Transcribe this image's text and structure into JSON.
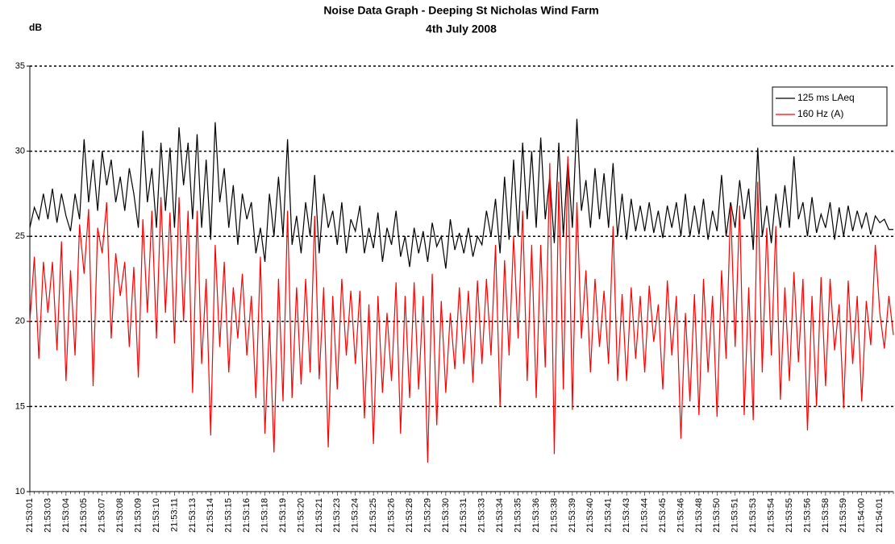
{
  "chart_data": {
    "type": "line",
    "title": "Noise Data Graph - Deeping St Nicholas Wind Farm",
    "subtitle": "4th July 2008",
    "y_label": "dB",
    "ylim": [
      10,
      35
    ],
    "yticks": [
      10,
      15,
      20,
      25,
      30,
      35
    ],
    "grid": true,
    "legend": "top-right",
    "categories": [
      "21:53:01",
      null,
      null,
      null,
      "21:53:03",
      null,
      null,
      null,
      "21:53:04",
      null,
      null,
      null,
      "21:53:05",
      null,
      null,
      null,
      "21:53:07",
      null,
      null,
      null,
      "21:53:08",
      null,
      null,
      null,
      "21:53:09",
      null,
      null,
      null,
      "21:53:10",
      null,
      null,
      null,
      "21:53:11",
      null,
      null,
      null,
      "21:53:13",
      null,
      null,
      null,
      "21:53:14",
      null,
      null,
      null,
      "21:53:15",
      null,
      null,
      null,
      "21:53:16",
      null,
      null,
      null,
      "21:53:18",
      null,
      null,
      null,
      "21:53:19",
      null,
      null,
      null,
      "21:53:20",
      null,
      null,
      null,
      "21:53:21",
      null,
      null,
      null,
      "21:53:23",
      null,
      null,
      null,
      "21:53:24",
      null,
      null,
      null,
      "21:53:25",
      null,
      null,
      null,
      "21:53:26",
      null,
      null,
      null,
      "21:53:28",
      null,
      null,
      null,
      "21:53:29",
      null,
      null,
      null,
      "21:53:30",
      null,
      null,
      null,
      "21:53:31",
      null,
      null,
      null,
      "21:53:33",
      null,
      null,
      null,
      "21:53:34",
      null,
      null,
      null,
      "21:53:35",
      null,
      null,
      null,
      "21:53:36",
      null,
      null,
      null,
      "21:53:38",
      null,
      null,
      null,
      "21:53:39",
      null,
      null,
      null,
      "21:53:40",
      null,
      null,
      null,
      "21:53:41",
      null,
      null,
      null,
      "21:53:43",
      null,
      null,
      null,
      "21:53:44",
      null,
      null,
      null,
      "21:53:45",
      null,
      null,
      null,
      "21:53:46",
      null,
      null,
      null,
      "21:53:48",
      null,
      null,
      null,
      "21:53:50",
      null,
      null,
      null,
      "21:53:51",
      null,
      null,
      null,
      "21:53:53",
      null,
      null,
      null,
      "21:53:54",
      null,
      null,
      null,
      "21:53:55",
      null,
      null,
      null,
      "21:53:56",
      null,
      null,
      null,
      "21:53:58",
      null,
      null,
      null,
      "21:53:59",
      null,
      null,
      null,
      "21:54:00",
      null,
      null,
      null,
      "21:54:01",
      null,
      null,
      null
    ],
    "series": [
      {
        "name": "125 ms LAeq",
        "color": "#000000",
        "values": [
          25.5,
          26.7,
          26,
          27.5,
          26,
          27.8,
          25.8,
          27.5,
          26.2,
          25.3,
          27.5,
          26,
          30.7,
          27,
          29.5,
          26.5,
          30,
          28,
          29.5,
          27,
          28.5,
          26.5,
          29,
          27.5,
          25.5,
          31.2,
          27,
          29,
          25.5,
          30.5,
          26.5,
          30.2,
          25.5,
          31.4,
          28,
          30.5,
          26,
          31,
          25.5,
          29.5,
          24.8,
          31.7,
          27,
          29,
          25.5,
          28,
          24.5,
          27.5,
          26,
          27,
          24,
          25.5,
          23.5,
          27.5,
          25,
          28.5,
          25,
          30.7,
          24.5,
          26.2,
          24,
          27,
          25,
          28.6,
          24,
          27.5,
          25.5,
          26.5,
          24.5,
          27,
          24,
          26,
          25.3,
          26.8,
          24,
          25.5,
          24.3,
          26.4,
          23.5,
          25.5,
          24.5,
          26.5,
          23.8,
          25,
          23.2,
          25.5,
          24,
          25.3,
          23.5,
          25.8,
          24.4,
          25,
          23.1,
          26,
          24.2,
          25.2,
          24,
          25.5,
          23.8,
          25,
          24.5,
          26.5,
          25,
          27.2,
          24,
          28.5,
          24.8,
          29.5,
          25,
          30.5,
          26,
          30,
          25.5,
          30.8,
          26,
          28.5,
          24.6,
          30.5,
          25,
          29.5,
          25.5,
          31.9,
          26.5,
          28.3,
          25.5,
          29,
          26,
          28.7,
          25.5,
          29.3,
          25,
          27.5,
          24.8,
          27.2,
          25.3,
          26.8,
          25.3,
          27,
          25.2,
          26.5,
          24.9,
          26.8,
          25.5,
          27,
          25,
          27.5,
          25,
          26.8,
          25.1,
          27.2,
          24.8,
          26.5,
          25.3,
          28.6,
          25,
          27,
          25.5,
          28.3,
          26,
          27.8,
          24.2,
          30.2,
          25,
          26.8,
          24.6,
          27.5,
          25.5,
          28,
          25.5,
          29.7,
          26,
          27,
          25,
          27.3,
          25.2,
          26.3,
          25.5,
          27,
          24.8,
          26.7,
          25,
          26.8,
          25.3,
          26.5,
          25.5,
          26.4,
          25.1,
          26.2,
          25.8,
          26,
          25.4,
          25.4
        ]
      },
      {
        "name": "160 Hz (A)",
        "color": "#ff0000",
        "values": [
          20,
          23.8,
          17.8,
          23.5,
          20.5,
          23.5,
          18.3,
          24.7,
          16.5,
          23,
          18,
          25.7,
          22.8,
          26.6,
          16.2,
          25.5,
          24,
          27,
          19,
          24,
          21.5,
          23.5,
          18.5,
          23.2,
          16.7,
          26,
          20.5,
          26.5,
          19,
          27.3,
          20.5,
          26.4,
          18.7,
          27.3,
          20,
          26.5,
          15.8,
          26.5,
          17.5,
          22.5,
          13.3,
          24.5,
          18.5,
          23.5,
          17,
          22,
          19,
          22.8,
          18,
          21.5,
          15.5,
          23.8,
          13.4,
          20,
          12.3,
          22.5,
          15.3,
          26.5,
          15.5,
          22,
          16.3,
          22.5,
          17,
          26.2,
          16.6,
          22,
          12.6,
          21.5,
          16,
          22.5,
          18,
          21.8,
          17.5,
          21.8,
          14.3,
          21,
          12.8,
          21.5,
          15.8,
          20.5,
          16.5,
          22.3,
          13.4,
          21.5,
          15.5,
          22.3,
          16,
          21.5,
          11.7,
          22.8,
          13.9,
          21.2,
          15.8,
          20.5,
          17.2,
          22,
          17.5,
          21.8,
          16.4,
          22.4,
          17.5,
          22.5,
          18,
          24.5,
          15,
          23.6,
          18,
          25,
          19,
          26.5,
          16.5,
          24.5,
          15.5,
          24.5,
          17.3,
          29.3,
          12.2,
          28.2,
          16,
          29.7,
          14.8,
          27,
          19,
          23,
          17,
          22.5,
          18.5,
          21.8,
          17.5,
          25.6,
          16.5,
          21.6,
          16.5,
          22,
          17.8,
          21.5,
          17,
          22.1,
          18.8,
          21,
          16,
          22.4,
          18,
          21.5,
          13.1,
          20.5,
          15.3,
          21.6,
          14.5,
          22.5,
          17,
          21.5,
          14.4,
          23,
          17.8,
          26.8,
          18.5,
          26.8,
          14.5,
          22,
          14.2,
          28.2,
          17,
          25.5,
          18,
          25.6,
          15.4,
          22,
          16.5,
          22.9,
          17.6,
          22.5,
          13.6,
          21.5,
          15,
          22.6,
          16.2,
          22.5,
          18.3,
          21,
          14.9,
          22.4,
          17.5,
          21.5,
          15.3,
          21.2,
          18.6,
          24.5,
          20.5,
          18.4,
          21.5,
          19.2
        ]
      }
    ]
  }
}
